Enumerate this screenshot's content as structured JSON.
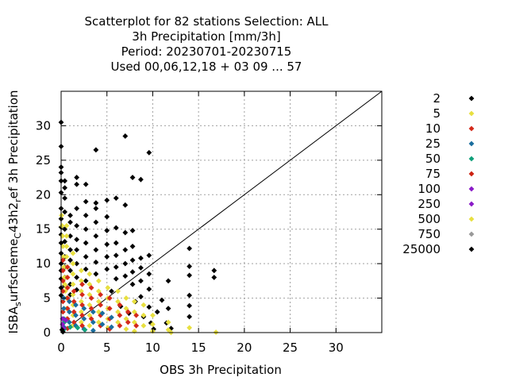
{
  "chart_data": {
    "type": "scatter",
    "title_lines": [
      "Scatterplot for   82 stations Selection: ALL",
      "3h Precipitation [mm/3h]",
      "Period: 20230701-20230715",
      "Used  00,06,12,18 + 03 09 ... 57"
    ],
    "xlabel": "OBS 3h Precipitation",
    "ylabel": "ISBA_surfscheme_C43h2_ref 3h Precipitation",
    "ylabel_display": [
      "ISBA",
      "s",
      "urfscheme",
      "C",
      "43h2",
      "r",
      "ef 3h Precipitation"
    ],
    "xlim": [
      0,
      35
    ],
    "ylim": [
      0,
      35
    ],
    "xticks": [
      0,
      5,
      10,
      15,
      20,
      25,
      30
    ],
    "yticks": [
      0,
      5,
      10,
      15,
      20,
      25,
      30
    ],
    "grid": true,
    "diagonal": true,
    "legend_position": "right",
    "legend": [
      {
        "label": "2",
        "color": "#000000"
      },
      {
        "label": "5",
        "color": "#e8e040"
      },
      {
        "label": "10",
        "color": "#d42a1a"
      },
      {
        "label": "25",
        "color": "#1a6e9e"
      },
      {
        "label": "50",
        "color": "#10a07a"
      },
      {
        "label": "75",
        "color": "#cc2211"
      },
      {
        "label": "100",
        "color": "#8a1ac8"
      },
      {
        "label": "250",
        "color": "#8a1ac8"
      },
      {
        "label": "500",
        "color": "#e8e040"
      },
      {
        "label": "750",
        "color": "#999999"
      },
      {
        "label": "25000",
        "color": "#000000"
      }
    ],
    "series": [
      {
        "legend": "2",
        "color": "#000000",
        "points": [
          [
            0,
            30.5
          ],
          [
            0,
            27
          ],
          [
            0,
            24
          ],
          [
            0,
            23.2
          ],
          [
            0,
            22
          ],
          [
            0,
            20.3
          ],
          [
            0,
            18
          ],
          [
            0,
            16.5
          ],
          [
            0,
            15.3
          ],
          [
            0,
            14.2
          ],
          [
            0,
            13
          ],
          [
            0,
            11.5
          ],
          [
            0,
            10
          ],
          [
            0,
            9
          ],
          [
            0,
            7.8
          ],
          [
            0,
            6.5
          ],
          [
            0,
            5.4
          ],
          [
            0.4,
            22
          ],
          [
            0.4,
            21
          ],
          [
            0.4,
            19.5
          ],
          [
            0.4,
            17.5
          ],
          [
            0.4,
            15
          ],
          [
            0.4,
            13.2
          ],
          [
            0.4,
            11
          ],
          [
            0.4,
            9.5
          ],
          [
            0.4,
            8
          ],
          [
            0.4,
            6.8
          ],
          [
            1,
            17
          ],
          [
            1,
            16
          ],
          [
            1,
            14
          ],
          [
            1,
            12
          ],
          [
            1,
            10.5
          ],
          [
            1,
            9
          ],
          [
            1,
            7
          ],
          [
            1,
            5.5
          ],
          [
            1.7,
            22.5
          ],
          [
            1.7,
            21.5
          ],
          [
            1.7,
            18
          ],
          [
            1.7,
            15.5
          ],
          [
            1.7,
            13.5
          ],
          [
            1.7,
            12
          ],
          [
            1.7,
            10
          ],
          [
            1.7,
            8
          ],
          [
            1.7,
            6.2
          ],
          [
            2.7,
            21.5
          ],
          [
            2.7,
            19
          ],
          [
            2.7,
            17
          ],
          [
            2.7,
            15
          ],
          [
            2.7,
            13
          ],
          [
            2.7,
            11
          ],
          [
            2.7,
            9.2
          ],
          [
            2.7,
            7.5
          ],
          [
            3.8,
            26.5
          ],
          [
            3.8,
            18.8
          ],
          [
            3.8,
            18
          ],
          [
            3.8,
            16
          ],
          [
            3.8,
            14
          ],
          [
            3.8,
            12
          ],
          [
            3.8,
            10.2
          ],
          [
            3.8,
            8.5
          ],
          [
            5,
            19.2
          ],
          [
            5,
            16.8
          ],
          [
            5,
            14.8
          ],
          [
            5,
            12.8
          ],
          [
            5,
            11
          ],
          [
            5,
            9.2
          ],
          [
            6,
            19.5
          ],
          [
            6,
            15.2
          ],
          [
            6,
            13
          ],
          [
            6,
            11.2
          ],
          [
            6,
            9.5
          ],
          [
            6,
            7.8
          ],
          [
            7,
            28.5
          ],
          [
            7,
            18.5
          ],
          [
            7,
            14.5
          ],
          [
            7,
            12
          ],
          [
            7,
            10
          ],
          [
            7,
            8.2
          ],
          [
            7.8,
            22.5
          ],
          [
            7.8,
            14.8
          ],
          [
            7.8,
            12.5
          ],
          [
            7.8,
            10.5
          ],
          [
            7.8,
            8.8
          ],
          [
            7.8,
            7
          ],
          [
            8.7,
            22.2
          ],
          [
            8.7,
            10.8
          ],
          [
            8.7,
            9.4
          ],
          [
            8.7,
            7.5
          ],
          [
            8.7,
            5.2
          ],
          [
            9.6,
            26.1
          ],
          [
            9.6,
            11.2
          ],
          [
            9.6,
            8.5
          ],
          [
            9.6,
            6.3
          ],
          [
            9.6,
            3.7
          ],
          [
            10.5,
            3
          ],
          [
            11,
            4.7
          ],
          [
            11.5,
            1.4
          ],
          [
            11.7,
            7.5
          ],
          [
            11.7,
            3.5
          ],
          [
            14,
            12.2
          ],
          [
            14,
            9.6
          ],
          [
            14,
            8.3
          ],
          [
            14,
            5.4
          ],
          [
            14,
            3.9
          ],
          [
            14,
            2.3
          ],
          [
            16.7,
            9
          ],
          [
            16.7,
            8
          ],
          [
            5.5,
            6
          ],
          [
            6.5,
            3.8
          ],
          [
            7.4,
            2.8
          ],
          [
            8.1,
            4.5
          ],
          [
            9,
            2.3
          ],
          [
            9.8,
            1.4
          ],
          [
            10.1,
            0.5
          ],
          [
            12,
            0.6
          ]
        ]
      },
      {
        "legend": "5",
        "color": "#e8e040",
        "points": [
          [
            0.05,
            17
          ],
          [
            0.1,
            15.5
          ],
          [
            0.15,
            14
          ],
          [
            0.2,
            12.5
          ],
          [
            0.25,
            11
          ],
          [
            0.3,
            9.5
          ],
          [
            0.35,
            8
          ],
          [
            0.4,
            7
          ],
          [
            0.45,
            6
          ],
          [
            0.6,
            15.5
          ],
          [
            0.6,
            14
          ],
          [
            0.6,
            12.5
          ],
          [
            0.6,
            11
          ],
          [
            0.6,
            9.5
          ],
          [
            0.6,
            8
          ],
          [
            0.6,
            6.5
          ],
          [
            0.6,
            5
          ],
          [
            0.6,
            3.5
          ],
          [
            0.6,
            2
          ],
          [
            1.3,
            11.5
          ],
          [
            1.3,
            10
          ],
          [
            1.3,
            8.5
          ],
          [
            1.3,
            7
          ],
          [
            1.3,
            5.5
          ],
          [
            1.3,
            4
          ],
          [
            1.3,
            2.5
          ],
          [
            1.3,
            1
          ],
          [
            2.2,
            9
          ],
          [
            2.2,
            7.5
          ],
          [
            2.2,
            6
          ],
          [
            2.2,
            4.5
          ],
          [
            2.2,
            3
          ],
          [
            2.2,
            1.5
          ],
          [
            3.1,
            8.5
          ],
          [
            3.1,
            7
          ],
          [
            3.1,
            5.5
          ],
          [
            3.1,
            4
          ],
          [
            3.1,
            2.5
          ],
          [
            3.1,
            1
          ],
          [
            4.1,
            7.5
          ],
          [
            4.1,
            6
          ],
          [
            4.1,
            4.5
          ],
          [
            4.1,
            3
          ],
          [
            4.1,
            1.5
          ],
          [
            5.1,
            6.5
          ],
          [
            5.1,
            5
          ],
          [
            5.1,
            3.5
          ],
          [
            5.1,
            2
          ],
          [
            5.1,
            0.7
          ],
          [
            6.2,
            6
          ],
          [
            6.2,
            4.5
          ],
          [
            6.2,
            3
          ],
          [
            6.2,
            1.5
          ],
          [
            7.1,
            5
          ],
          [
            7.1,
            3.5
          ],
          [
            7.1,
            2
          ],
          [
            7.1,
            0.5
          ],
          [
            8,
            4.5
          ],
          [
            8,
            3
          ],
          [
            8,
            1.5
          ],
          [
            8,
            0.2
          ],
          [
            9,
            4
          ],
          [
            9,
            2.5
          ],
          [
            9,
            1
          ],
          [
            10,
            2.5
          ],
          [
            10,
            1.2
          ],
          [
            10,
            0.2
          ],
          [
            11.7,
            1.5
          ],
          [
            11.7,
            0.4
          ],
          [
            14,
            0.7
          ],
          [
            16.9,
            0.05
          ],
          [
            12,
            0
          ]
        ]
      },
      {
        "legend": "10",
        "color": "#d42a1a",
        "points": [
          [
            0.2,
            10.5
          ],
          [
            0.2,
            9
          ],
          [
            0.2,
            7.5
          ],
          [
            0.2,
            6
          ],
          [
            0.2,
            4.5
          ],
          [
            0.2,
            3
          ],
          [
            0.7,
            9.5
          ],
          [
            0.7,
            8
          ],
          [
            0.7,
            6.5
          ],
          [
            0.7,
            5
          ],
          [
            0.7,
            3.5
          ],
          [
            0.7,
            2
          ],
          [
            0.7,
            0.6
          ],
          [
            1.4,
            6
          ],
          [
            1.4,
            4.5
          ],
          [
            1.4,
            3
          ],
          [
            1.4,
            1.5
          ],
          [
            2.3,
            7
          ],
          [
            2.3,
            5.5
          ],
          [
            2.3,
            4
          ],
          [
            2.3,
            2.5
          ],
          [
            2.3,
            1
          ],
          [
            3.3,
            6.5
          ],
          [
            3.3,
            5
          ],
          [
            3.3,
            3.5
          ],
          [
            3.3,
            2
          ],
          [
            4.3,
            5.5
          ],
          [
            4.3,
            4
          ],
          [
            4.3,
            2.5
          ],
          [
            4.3,
            1
          ],
          [
            5.3,
            5
          ],
          [
            5.3,
            3.5
          ],
          [
            5.3,
            2
          ],
          [
            5.3,
            0.5
          ],
          [
            6.4,
            4
          ],
          [
            6.4,
            2.5
          ],
          [
            6.4,
            1
          ],
          [
            7.3,
            3
          ],
          [
            7.3,
            1.5
          ],
          [
            8.2,
            2.5
          ],
          [
            8.2,
            1
          ]
        ]
      },
      {
        "legend": "25",
        "color": "#1a6e9e",
        "points": [
          [
            0.3,
            5
          ],
          [
            0.3,
            3.5
          ],
          [
            0.3,
            2
          ],
          [
            0.3,
            0.8
          ],
          [
            0.9,
            4.5
          ],
          [
            0.9,
            3
          ],
          [
            0.9,
            1.5
          ],
          [
            1.6,
            4
          ],
          [
            1.6,
            2.5
          ],
          [
            1.6,
            1
          ],
          [
            2.5,
            3.5
          ],
          [
            2.5,
            2
          ],
          [
            2.5,
            0.5
          ],
          [
            3.5,
            3
          ],
          [
            3.5,
            1.5
          ],
          [
            3.5,
            0.3
          ],
          [
            4.5,
            2.8
          ],
          [
            4.5,
            1.2
          ],
          [
            5.5,
            2.2
          ],
          [
            5.5,
            0.8
          ]
        ]
      },
      {
        "legend": "50",
        "color": "#10a07a",
        "points": [
          [
            0.35,
            1.5
          ],
          [
            0.35,
            0.5
          ],
          [
            1,
            0.8
          ],
          [
            1.8,
            0.7
          ],
          [
            2.6,
            0.4
          ]
        ]
      },
      {
        "legend": "100",
        "color": "#8a1ac8",
        "points": [
          [
            0.15,
            2
          ],
          [
            0.15,
            1.2
          ],
          [
            0.25,
            0.6
          ],
          [
            0.5,
            1.8
          ]
        ]
      },
      {
        "legend": "25000",
        "color": "#000000",
        "points": [
          [
            0.1,
            0.4
          ],
          [
            0.2,
            0.1
          ]
        ]
      }
    ]
  }
}
